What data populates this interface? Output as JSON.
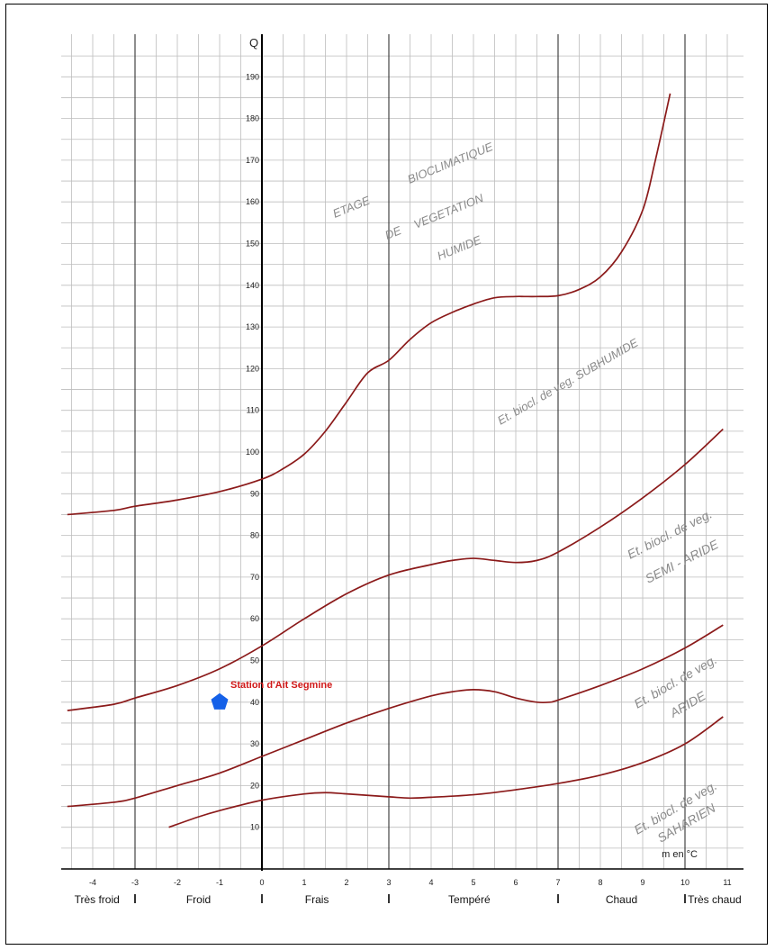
{
  "chart_data": {
    "type": "line",
    "title": "",
    "xlabel": "m en °C",
    "ylabel": "Q",
    "xlim": [
      -4.75,
      11.1
    ],
    "ylim": [
      0,
      196
    ],
    "x_ticks": [
      -4,
      -3,
      -2,
      -1,
      0,
      1,
      2,
      3,
      4,
      5,
      6,
      7,
      8,
      9,
      10,
      11
    ],
    "y_ticks": [
      10,
      20,
      30,
      40,
      50,
      60,
      70,
      80,
      90,
      100,
      110,
      120,
      130,
      140,
      150,
      160,
      170,
      180,
      190
    ],
    "grid": true,
    "line_color": "#8b1a1a",
    "series": [
      {
        "x": [
          -4.6,
          -3,
          -2,
          -1,
          0,
          0.5,
          1,
          1.5,
          2,
          2.5,
          3,
          3.5,
          4,
          4.5,
          5,
          5.5,
          6,
          6.5,
          7,
          7.5,
          8,
          8.5,
          9,
          9.3,
          9.65
        ],
        "y": [
          85,
          87,
          88.5,
          90.5,
          93.5,
          96,
          100,
          108,
          117,
          127,
          135,
          142,
          146,
          150,
          152,
          153,
          153,
          153.5,
          154,
          155,
          158,
          163,
          173,
          184,
          196
        ]
      },
      {
        "x": [
          -4.6,
          -3,
          -2,
          -1,
          0,
          1,
          2,
          3,
          4,
          5,
          5.5,
          6,
          6.5,
          7,
          8,
          9,
          10,
          10.85
        ],
        "y": [
          85,
          87,
          88.5,
          90.5,
          93.5,
          99.5,
          110,
          121,
          131,
          135.5,
          137,
          137.5,
          137.3,
          137.5,
          141,
          150,
          160,
          186
        ]
      }
    ],
    "curves": [
      {
        "x": [
          -4.6,
          -3,
          -2,
          -1,
          0,
          0.5,
          1,
          2,
          3,
          4,
          5,
          6,
          6.7,
          7,
          8,
          9,
          10,
          10.85
        ],
        "y": [
          85,
          87,
          88.5,
          90.5,
          93.5,
          96,
          99,
          110,
          121,
          131,
          135.5,
          137.3,
          137.3,
          137.5,
          141,
          154,
          186,
          186
        ]
      }
    ],
    "boundaries": [
      {
        "x": [
          -4.6,
          -3.5,
          -3,
          -2,
          -1,
          0,
          0.5,
          1,
          1.5,
          2,
          2.5,
          3,
          3.5,
          4,
          4.5,
          5,
          5.5,
          6,
          6.2,
          6.5,
          7,
          7.5,
          8,
          8.5,
          9,
          9.3,
          9.65
        ],
        "y": [
          85,
          86,
          87,
          88.5,
          90.5,
          93.5,
          96,
          99.5,
          105,
          112,
          119,
          122,
          127,
          131,
          133.5,
          135.5,
          137,
          137.3,
          137.3,
          137.3,
          137.5,
          139,
          142,
          148,
          158,
          170,
          186
        ]
      },
      {
        "x": [
          -4.6,
          -3.5,
          -3,
          -2,
          -1,
          0,
          1,
          2,
          3,
          4,
          4.5,
          5,
          5.5,
          6,
          6.5,
          7,
          8,
          9,
          10,
          10.9
        ],
        "y": [
          38,
          39.5,
          41,
          44,
          48,
          53.5,
          60,
          66,
          70.5,
          73,
          74,
          74.5,
          74,
          73.5,
          74,
          76,
          82,
          89,
          97,
          105.5
        ]
      },
      {
        "x": [
          -4.6,
          -3.5,
          -3,
          -2,
          -1,
          0,
          1,
          2,
          3,
          4,
          4.5,
          5,
          5.5,
          6,
          6.5,
          6.8,
          7,
          8,
          9,
          10,
          10.9
        ],
        "y": [
          15,
          16,
          17,
          20,
          23,
          27,
          31,
          35,
          38.5,
          41.5,
          42.5,
          43,
          42.5,
          41,
          40,
          40,
          40.5,
          44,
          48,
          53,
          58.5
        ]
      },
      {
        "x": [
          -2.2,
          -1.5,
          -1,
          0,
          1,
          1.5,
          2,
          3,
          3.5,
          4,
          5,
          6,
          7,
          8,
          9,
          10,
          10.9
        ],
        "y": [
          10,
          12.5,
          14,
          16.5,
          18,
          18.3,
          18,
          17.3,
          17,
          17.2,
          17.8,
          19,
          20.5,
          22.5,
          25.5,
          30,
          36.5
        ]
      }
    ],
    "station": {
      "label": "Station d'Ait Segmine",
      "x": -1,
      "y": 40,
      "color": "#1561e8",
      "label_color": "#d01818"
    },
    "zones": [
      {
        "label": "Très froid",
        "center": -3.9
      },
      {
        "label": "Froid",
        "center": -1.5
      },
      {
        "label": "Frais",
        "center": 1.3
      },
      {
        "label": "Tempéré",
        "center": 4.9
      },
      {
        "label": "Chaud",
        "center": 8.5
      },
      {
        "label": "Très chaud",
        "center": 10.7
      }
    ],
    "zone_dividers": [
      -3,
      0,
      3,
      7,
      10
    ],
    "region_labels": [
      {
        "lines": [
          "ETAGE",
          "BIOCLIMATIQUE",
          "DE",
          "VEGETATION",
          "HUMIDE"
        ]
      },
      {
        "text": "Et. biocl. de veg. SUBHUMIDE"
      },
      {
        "lines": [
          "Et. biocl. de veg.",
          "SEMI - ARIDE"
        ]
      },
      {
        "lines": [
          "Et. biocl. de veg.",
          "ARIDE"
        ]
      },
      {
        "lines": [
          "Et. biocl. de veg.",
          "SAHARIEN"
        ]
      }
    ]
  }
}
